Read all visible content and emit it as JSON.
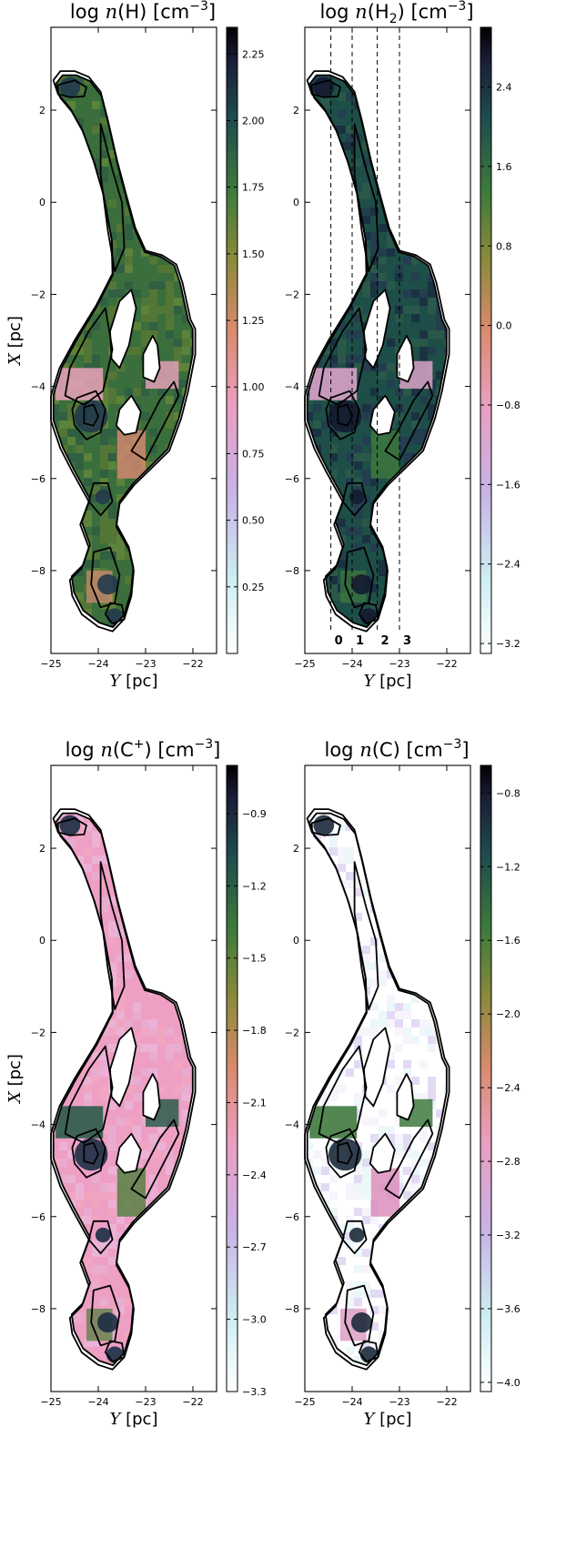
{
  "chart_data": [
    {
      "type": "heatmap",
      "title": {
        "prefix": "log ",
        "var": "n",
        "open": "(",
        "species": "H",
        "sub": "",
        "sup": "",
        "close": ")",
        "unit": " [cm",
        "unit_sup": "−3",
        "unit_close": "]"
      },
      "xlabel": {
        "var": "Y",
        "unit": " [pc]"
      },
      "ylabel": {
        "var": "X",
        "unit": " [pc]"
      },
      "show_ylabel": true,
      "xlim": [
        -25,
        -21.5
      ],
      "ylim": [
        -9.8,
        3.8
      ],
      "x_ticks": [
        "−25",
        "−24",
        "−23",
        "−22"
      ],
      "y_ticks": [
        "−8",
        "−6",
        "−4",
        "−2",
        "0",
        "2"
      ],
      "colorbar": {
        "range": [
          0.0,
          2.35
        ],
        "ticks": [
          "0.25",
          "0.50",
          "0.75",
          "1.00",
          "1.25",
          "1.50",
          "1.75",
          "2.00",
          "2.25"
        ]
      },
      "background": "#3a6e3c",
      "mottle": [
        "#5c7a34",
        "#2e5b44",
        "#6a8a3a"
      ],
      "patches": [
        "#d98a73",
        "#e2a0b6"
      ],
      "core": "#223a4c",
      "cut_lines": []
    },
    {
      "type": "heatmap",
      "title": {
        "prefix": "log ",
        "var": "n",
        "open": "(",
        "species": "H",
        "sub": "2",
        "sup": "",
        "close": ")",
        "unit": " [cm",
        "unit_sup": "−3",
        "unit_close": "]"
      },
      "xlabel": {
        "var": "Y",
        "unit": " [pc]"
      },
      "ylabel": {
        "var": "X",
        "unit": " [pc]"
      },
      "show_ylabel": false,
      "xlim": [
        -25,
        -21.5
      ],
      "ylim": [
        -9.8,
        3.8
      ],
      "x_ticks": [
        "−25",
        "−24",
        "−23",
        "−22"
      ],
      "y_ticks": [
        "−8",
        "−6",
        "−4",
        "−2",
        "0",
        "2"
      ],
      "colorbar": {
        "range": [
          -3.3,
          3.0
        ],
        "ticks": [
          "−3.2",
          "−2.4",
          "−1.6",
          "−0.8",
          "0.0",
          "0.8",
          "1.6",
          "2.4"
        ]
      },
      "background": "#1e4e48",
      "mottle": [
        "#263a52",
        "#2f5c4a",
        "#1a2a40"
      ],
      "patches": [
        "#3f7a3e",
        "#d9a3c8"
      ],
      "core": "#141b30",
      "cut_lines": [
        {
          "label": "0",
          "y": -24.45
        },
        {
          "label": "1",
          "y": -24.0
        },
        {
          "label": "2",
          "y": -23.47
        },
        {
          "label": "3",
          "y": -23.0
        }
      ]
    },
    {
      "type": "heatmap",
      "title": {
        "prefix": "log ",
        "var": "n",
        "open": "(",
        "species": "C",
        "sub": "",
        "sup": "+",
        "close": ")",
        "unit": " [cm",
        "unit_sup": "−3",
        "unit_close": "]"
      },
      "xlabel": {
        "var": "Y",
        "unit": " [pc]"
      },
      "ylabel": {
        "var": "X",
        "unit": " [pc]"
      },
      "show_ylabel": true,
      "xlim": [
        -25,
        -21.5
      ],
      "ylim": [
        -9.8,
        3.8
      ],
      "x_ticks": [
        "−25",
        "−24",
        "−23",
        "−22"
      ],
      "y_ticks": [
        "−8",
        "−6",
        "−4",
        "−2",
        "0",
        "2"
      ],
      "colorbar": {
        "range": [
          -3.3,
          -0.7
        ],
        "ticks": [
          "−3.3",
          "−3.0",
          "−2.7",
          "−2.4",
          "−2.1",
          "−1.8",
          "−1.5",
          "−1.2",
          "−0.9"
        ]
      },
      "background": "#ee9fc4",
      "mottle": [
        "#e6b0d6",
        "#f2a7bf",
        "#eab8dc"
      ],
      "patches": [
        "#4d7e3a",
        "#2a5c4a"
      ],
      "core": "#1c2e44",
      "cut_lines": []
    },
    {
      "type": "heatmap",
      "title": {
        "prefix": "log ",
        "var": "n",
        "open": "(",
        "species": "C",
        "sub": "",
        "sup": "",
        "close": ")",
        "unit": " [cm",
        "unit_sup": "−3",
        "unit_close": "]"
      },
      "xlabel": {
        "var": "Y",
        "unit": " [pc]"
      },
      "ylabel": {
        "var": "X",
        "unit": " [pc]"
      },
      "show_ylabel": false,
      "xlim": [
        -25,
        -21.5
      ],
      "ylim": [
        -9.8,
        3.8
      ],
      "x_ticks": [
        "−25",
        "−24",
        "−23",
        "−22"
      ],
      "y_ticks": [
        "−8",
        "−6",
        "−4",
        "−2",
        "0",
        "2"
      ],
      "colorbar": {
        "range": [
          -4.05,
          -0.65
        ],
        "ticks": [
          "−4.0",
          "−3.6",
          "−3.2",
          "−2.8",
          "−2.4",
          "−2.0",
          "−1.6",
          "−1.2",
          "−0.8"
        ]
      },
      "background": "#ffffff",
      "mottle": [
        "#e6f4f8",
        "#d9cdf0",
        "#f4f0fb"
      ],
      "patches": [
        "#d98ab8",
        "#3f7a3e"
      ],
      "core": "#1b2a3a",
      "cut_lines": []
    }
  ]
}
